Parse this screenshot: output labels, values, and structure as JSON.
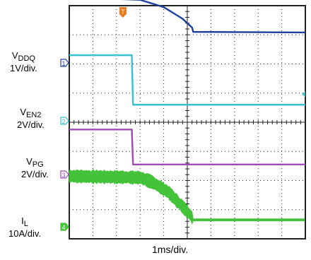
{
  "chart_data": {
    "type": "line",
    "grid": true,
    "grid_divisions": {
      "x": 10,
      "y": 8
    },
    "x_scale_label": "1ms/div.",
    "trigger_marker": "T",
    "channels": [
      {
        "id": "1",
        "name": "V",
        "sub": "DDQ",
        "scale": "1V/div.",
        "color": "#1f3f9f",
        "points": [
          [
            0,
            4.25
          ],
          [
            1.3,
            4.25
          ],
          [
            3.0,
            4.2
          ],
          [
            4.0,
            3.95
          ],
          [
            4.8,
            3.55
          ],
          [
            5.2,
            3.25
          ],
          [
            5.25,
            3.1
          ],
          [
            10,
            3.08
          ]
        ]
      },
      {
        "id": "2",
        "name": "V",
        "sub": "EN2",
        "scale": "2V/div.",
        "color": "#39c0d0",
        "points": [
          [
            0,
            2.3
          ],
          [
            2.65,
            2.3
          ],
          [
            2.7,
            0.6
          ],
          [
            10,
            0.6
          ]
        ]
      },
      {
        "id": "3",
        "name": "V",
        "sub": "PG",
        "scale": "2V/div.",
        "color": "#a04ab8",
        "points": [
          [
            0,
            -0.25
          ],
          [
            2.65,
            -0.25
          ],
          [
            2.7,
            -1.45
          ],
          [
            10,
            -1.45
          ]
        ]
      },
      {
        "id": "4",
        "name": "I",
        "sub": "L",
        "scale": "10A/div.",
        "color": "#44c23a",
        "noisy": true,
        "points": [
          [
            0,
            -1.85
          ],
          [
            3.0,
            -1.9
          ],
          [
            3.5,
            -2.05
          ],
          [
            4.2,
            -2.4
          ],
          [
            4.8,
            -2.9
          ],
          [
            5.15,
            -3.2
          ],
          [
            5.25,
            -3.35
          ],
          [
            10,
            -3.35
          ]
        ]
      }
    ]
  }
}
